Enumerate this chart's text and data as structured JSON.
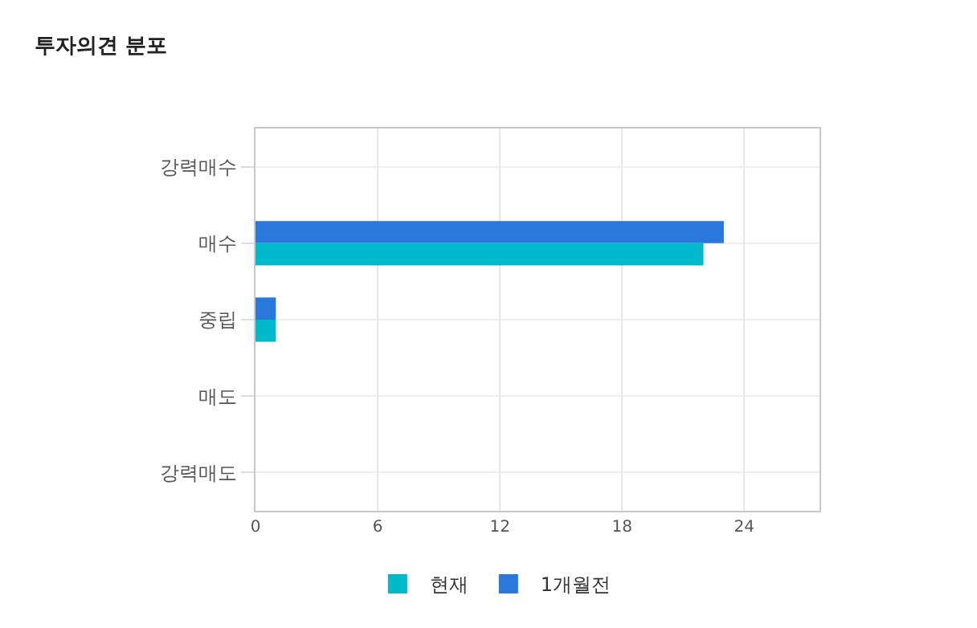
{
  "chart_data": {
    "type": "bar",
    "orientation": "horizontal",
    "title": "투자의견 분포",
    "categories": [
      "강력매수",
      "매수",
      "중립",
      "매도",
      "강력매도"
    ],
    "series": [
      {
        "name": "1개월전",
        "color": "#2a78dc",
        "values": [
          0,
          23,
          1,
          0,
          0
        ]
      },
      {
        "name": "현재",
        "color": "#00bacb",
        "values": [
          0,
          22,
          1,
          0,
          0
        ]
      }
    ],
    "xlim": [
      0,
      27.7
    ],
    "xticks": [
      0,
      6,
      12,
      18,
      24
    ],
    "grid": true,
    "legend": "bottom"
  }
}
